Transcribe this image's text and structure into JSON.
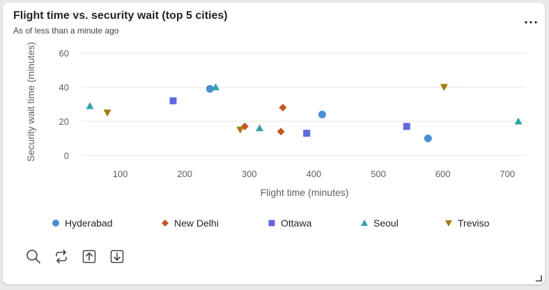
{
  "card": {
    "title": "Flight time vs. security wait (top 5 cities)",
    "subtitle": "As of less than a minute ago",
    "more_icon": "more-horizontal-icon"
  },
  "chart_data": {
    "type": "scatter",
    "title": "Flight time vs. security wait (top 5 cities)",
    "xlabel": "Flight time (minutes)",
    "ylabel": "Security wait time (minutes)",
    "xlim": [
      40,
      730
    ],
    "ylim": [
      0,
      60
    ],
    "xticks": [
      100,
      200,
      300,
      400,
      500,
      600,
      700
    ],
    "yticks": [
      0,
      20,
      40,
      60
    ],
    "grid": "horizontal",
    "legend_position": "bottom",
    "series": [
      {
        "name": "Hyderabad",
        "color": "#4a8fd6",
        "marker": "circle",
        "points": [
          [
            239,
            39
          ],
          [
            413,
            24
          ],
          [
            577,
            10
          ]
        ]
      },
      {
        "name": "New Delhi",
        "color": "#c4571d",
        "marker": "diamond",
        "points": [
          [
            293,
            17
          ],
          [
            349,
            14
          ],
          [
            352,
            28
          ]
        ]
      },
      {
        "name": "Ottawa",
        "color": "#6068e3",
        "marker": "square",
        "points": [
          [
            182,
            32
          ],
          [
            389,
            13
          ],
          [
            544,
            17
          ]
        ]
      },
      {
        "name": "Seoul",
        "color": "#2fa3aa",
        "marker": "triangle-up",
        "points": [
          [
            53,
            29
          ],
          [
            248,
            40
          ],
          [
            316,
            16
          ],
          [
            717,
            20
          ]
        ]
      },
      {
        "name": "Treviso",
        "color": "#a87a0b",
        "marker": "triangle-down",
        "points": [
          [
            80,
            25
          ],
          [
            286,
            15
          ],
          [
            602,
            40
          ]
        ]
      }
    ]
  },
  "toolbar": {
    "items": [
      {
        "name": "zoom-search-icon"
      },
      {
        "name": "refresh-icon"
      },
      {
        "name": "export-up-icon"
      },
      {
        "name": "download-icon"
      }
    ]
  }
}
